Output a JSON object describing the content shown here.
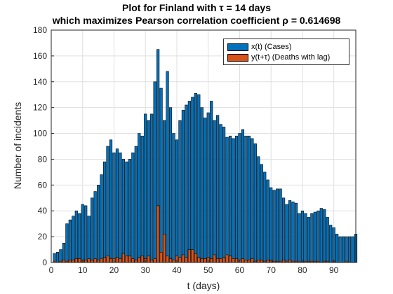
{
  "chart_data": {
    "type": "bar",
    "title_line1": "Plot for Finland with τ = 14 days",
    "title_line2": "which maximizes Pearson correlation coefficient ρ = 0.614698",
    "xlabel": "t (days)",
    "ylabel": "Number of incidents",
    "xlim": [
      0,
      97
    ],
    "ylim": [
      0,
      180
    ],
    "xticks": [
      "0",
      "10",
      "20",
      "30",
      "40",
      "50",
      "60",
      "70",
      "80",
      "90"
    ],
    "yticks": [
      "0",
      "20",
      "40",
      "60",
      "80",
      "100",
      "120",
      "140",
      "160",
      "180"
    ],
    "grid": true,
    "legend_position": "top-right",
    "x": [
      1,
      2,
      3,
      4,
      5,
      6,
      7,
      8,
      9,
      10,
      11,
      12,
      13,
      14,
      15,
      16,
      17,
      18,
      19,
      20,
      21,
      22,
      23,
      24,
      25,
      26,
      27,
      28,
      29,
      30,
      31,
      32,
      33,
      34,
      35,
      36,
      37,
      38,
      39,
      40,
      41,
      42,
      43,
      44,
      45,
      46,
      47,
      48,
      49,
      50,
      51,
      52,
      53,
      54,
      55,
      56,
      57,
      58,
      59,
      60,
      61,
      62,
      63,
      64,
      65,
      66,
      67,
      68,
      69,
      70,
      71,
      72,
      73,
      74,
      75,
      76,
      77,
      78,
      79,
      80,
      81,
      82,
      83,
      84,
      85,
      86,
      87,
      88,
      89,
      90,
      91,
      92,
      93,
      94,
      95,
      96,
      97
    ],
    "series": [
      {
        "name": "x(t) (Cases)",
        "color": "#0072BD",
        "values": [
          7,
          8,
          10,
          15,
          30,
          33,
          36,
          40,
          38,
          45,
          44,
          36,
          50,
          55,
          60,
          68,
          78,
          90,
          95,
          85,
          88,
          85,
          80,
          78,
          80,
          85,
          90,
          100,
          98,
          115,
          110,
          115,
          140,
          165,
          135,
          110,
          148,
          120,
          100,
          95,
          110,
          118,
          122,
          125,
          128,
          131,
          130,
          120,
          112,
          116,
          125,
          110,
          114,
          107,
          105,
          97,
          98,
          96,
          98,
          100,
          103,
          98,
          98,
          96,
          92,
          82,
          76,
          70,
          64,
          58,
          56,
          57,
          57,
          50,
          45,
          48,
          47,
          46,
          38,
          40,
          38,
          35,
          38,
          39,
          40,
          42,
          41,
          35,
          29,
          27,
          22,
          20,
          20,
          20,
          20,
          20,
          22
        ]
      },
      {
        "name": "y(t+τ) (Deaths with lag)",
        "color": "#D95319",
        "values": [
          1,
          0,
          1,
          2,
          1,
          2,
          2,
          3,
          3,
          2,
          2,
          3,
          2,
          3,
          2,
          3,
          4,
          5,
          3,
          3,
          4,
          3,
          7,
          5,
          5,
          3,
          2,
          4,
          5,
          3,
          5,
          2,
          3,
          44,
          8,
          22,
          5,
          3,
          2,
          5,
          4,
          6,
          4,
          10,
          10,
          7,
          4,
          3,
          3,
          4,
          3,
          6,
          3,
          3,
          4,
          6,
          5,
          3,
          3,
          2,
          3,
          2,
          2,
          3,
          1,
          2,
          2,
          1,
          2,
          2,
          1,
          1,
          1,
          2,
          1,
          2,
          1,
          1,
          1,
          0,
          1,
          1,
          1,
          1,
          1,
          0,
          1,
          1,
          0,
          1,
          0,
          0,
          0,
          1,
          0,
          0,
          0
        ]
      }
    ]
  }
}
